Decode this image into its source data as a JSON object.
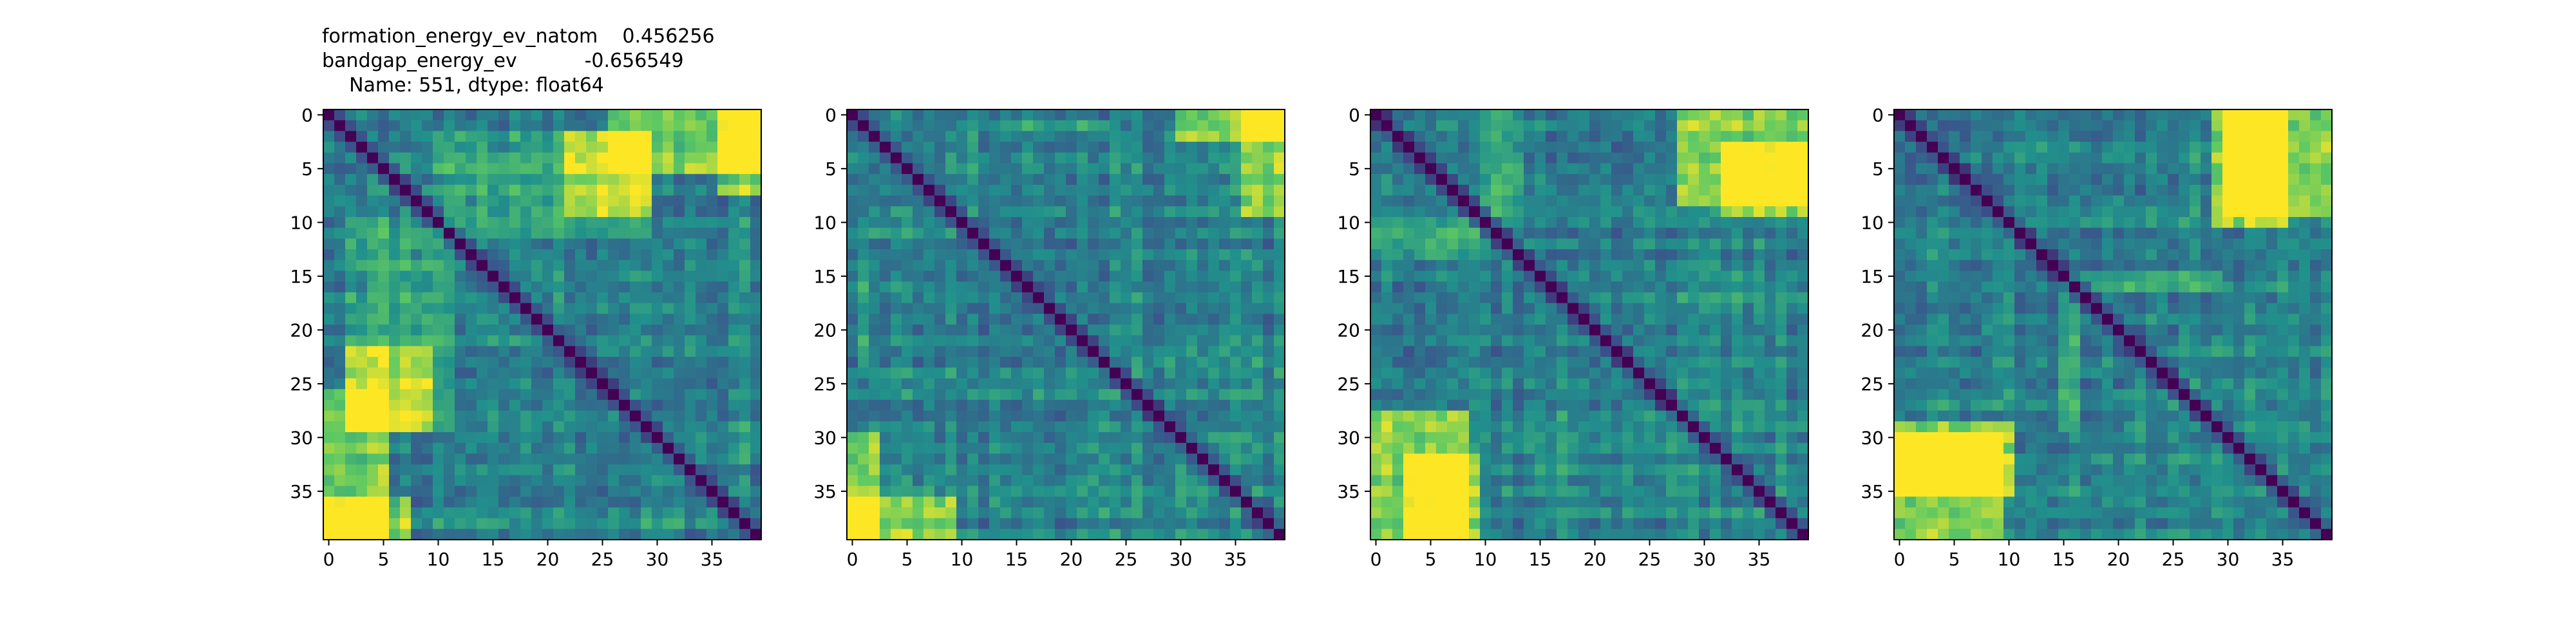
{
  "title": {
    "line1": "formation_energy_ev_natom    0.456256",
    "line2": "bandgap_energy_ev           -0.656549",
    "line3": "Name: 551, dtype: float64"
  },
  "colormap": [
    "#440154",
    "#3b528b",
    "#21918c",
    "#5ec962",
    "#fde725"
  ],
  "chart_data": [
    {
      "type": "heatmap",
      "size": 40,
      "cmap": "viridis",
      "vmin": 0,
      "vmax": 1,
      "xticks": [
        0,
        5,
        10,
        15,
        20,
        25,
        30,
        35
      ],
      "yticks": [
        0,
        5,
        10,
        15,
        20,
        25,
        30,
        35
      ],
      "xtick_labels": [
        "0",
        "5",
        "10",
        "15",
        "20",
        "25",
        "30",
        "35"
      ],
      "ytick_labels": [
        "0",
        "5",
        "10",
        "15",
        "20",
        "25",
        "30",
        "35"
      ],
      "block_boundaries": [],
      "group_levels": [],
      "row_variation": [],
      "col_variation": [],
      "title": ""
    },
    {
      "type": "heatmap",
      "size": 40,
      "cmap": "viridis",
      "vmin": 0,
      "vmax": 1,
      "xticks": [
        0,
        5,
        10,
        15,
        20,
        25,
        30,
        35
      ],
      "yticks": [
        0,
        5,
        10,
        15,
        20,
        25,
        30,
        35
      ],
      "xtick_labels": [
        "0",
        "5",
        "10",
        "15",
        "20",
        "25",
        "30",
        "35"
      ],
      "ytick_labels": [
        "0",
        "5",
        "10",
        "15",
        "20",
        "25",
        "30",
        "35"
      ],
      "title": ""
    },
    {
      "type": "heatmap",
      "size": 40,
      "cmap": "viridis",
      "vmin": 0,
      "vmax": 1,
      "xticks": [
        0,
        5,
        10,
        15,
        20,
        25,
        30,
        35
      ],
      "yticks": [
        0,
        5,
        10,
        15,
        20,
        25,
        30,
        35
      ],
      "xtick_labels": [
        "0",
        "5",
        "10",
        "15",
        "20",
        "25",
        "30",
        "35"
      ],
      "ytick_labels": [
        "0",
        "5",
        "10",
        "15",
        "20",
        "25",
        "30",
        "35"
      ],
      "title": ""
    },
    {
      "type": "heatmap",
      "size": 40,
      "cmap": "viridis",
      "vmin": 0,
      "vmax": 1,
      "xticks": [
        0,
        5,
        10,
        15,
        20,
        25,
        30,
        35
      ],
      "yticks": [
        0,
        5,
        10,
        15,
        20,
        25,
        30,
        35
      ],
      "xtick_labels": [
        "0",
        "5",
        "10",
        "15",
        "20",
        "25",
        "30",
        "35"
      ],
      "ytick_labels": [
        "0",
        "5",
        "10",
        "15",
        "20",
        "25",
        "30",
        "35"
      ],
      "title": ""
    }
  ]
}
